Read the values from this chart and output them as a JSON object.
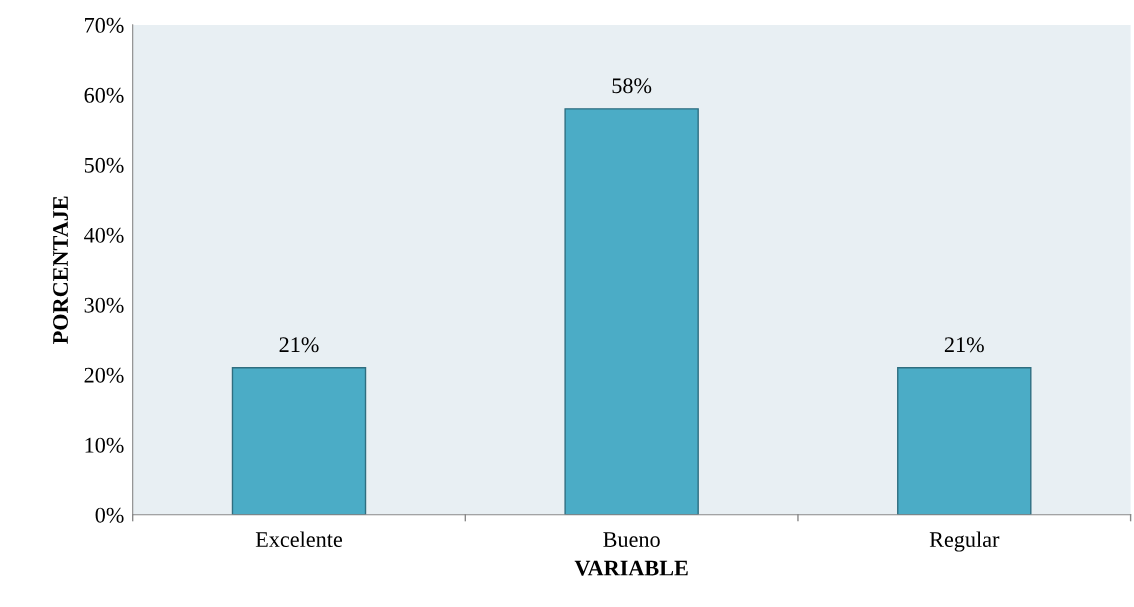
{
  "chart_data": {
    "type": "bar",
    "xlabel": "VARIABLE",
    "ylabel": "PORCENTAJE",
    "categories": [
      "Excelente",
      "Bueno",
      "Regular"
    ],
    "values": [
      21,
      58,
      21
    ],
    "value_labels": [
      "21%",
      "58%",
      "21%"
    ],
    "color": "#4bacc6",
    "ylim": [
      0,
      70
    ],
    "yticks": [
      {
        "value": 0,
        "label": "0%"
      },
      {
        "value": 10,
        "label": "10%"
      },
      {
        "value": 20,
        "label": "20%"
      },
      {
        "value": 30,
        "label": "30%"
      },
      {
        "value": 40,
        "label": "40%"
      },
      {
        "value": 50,
        "label": "50%"
      },
      {
        "value": 60,
        "label": "60%"
      },
      {
        "value": 70,
        "label": "70%"
      }
    ],
    "grid": false,
    "legend": false
  }
}
